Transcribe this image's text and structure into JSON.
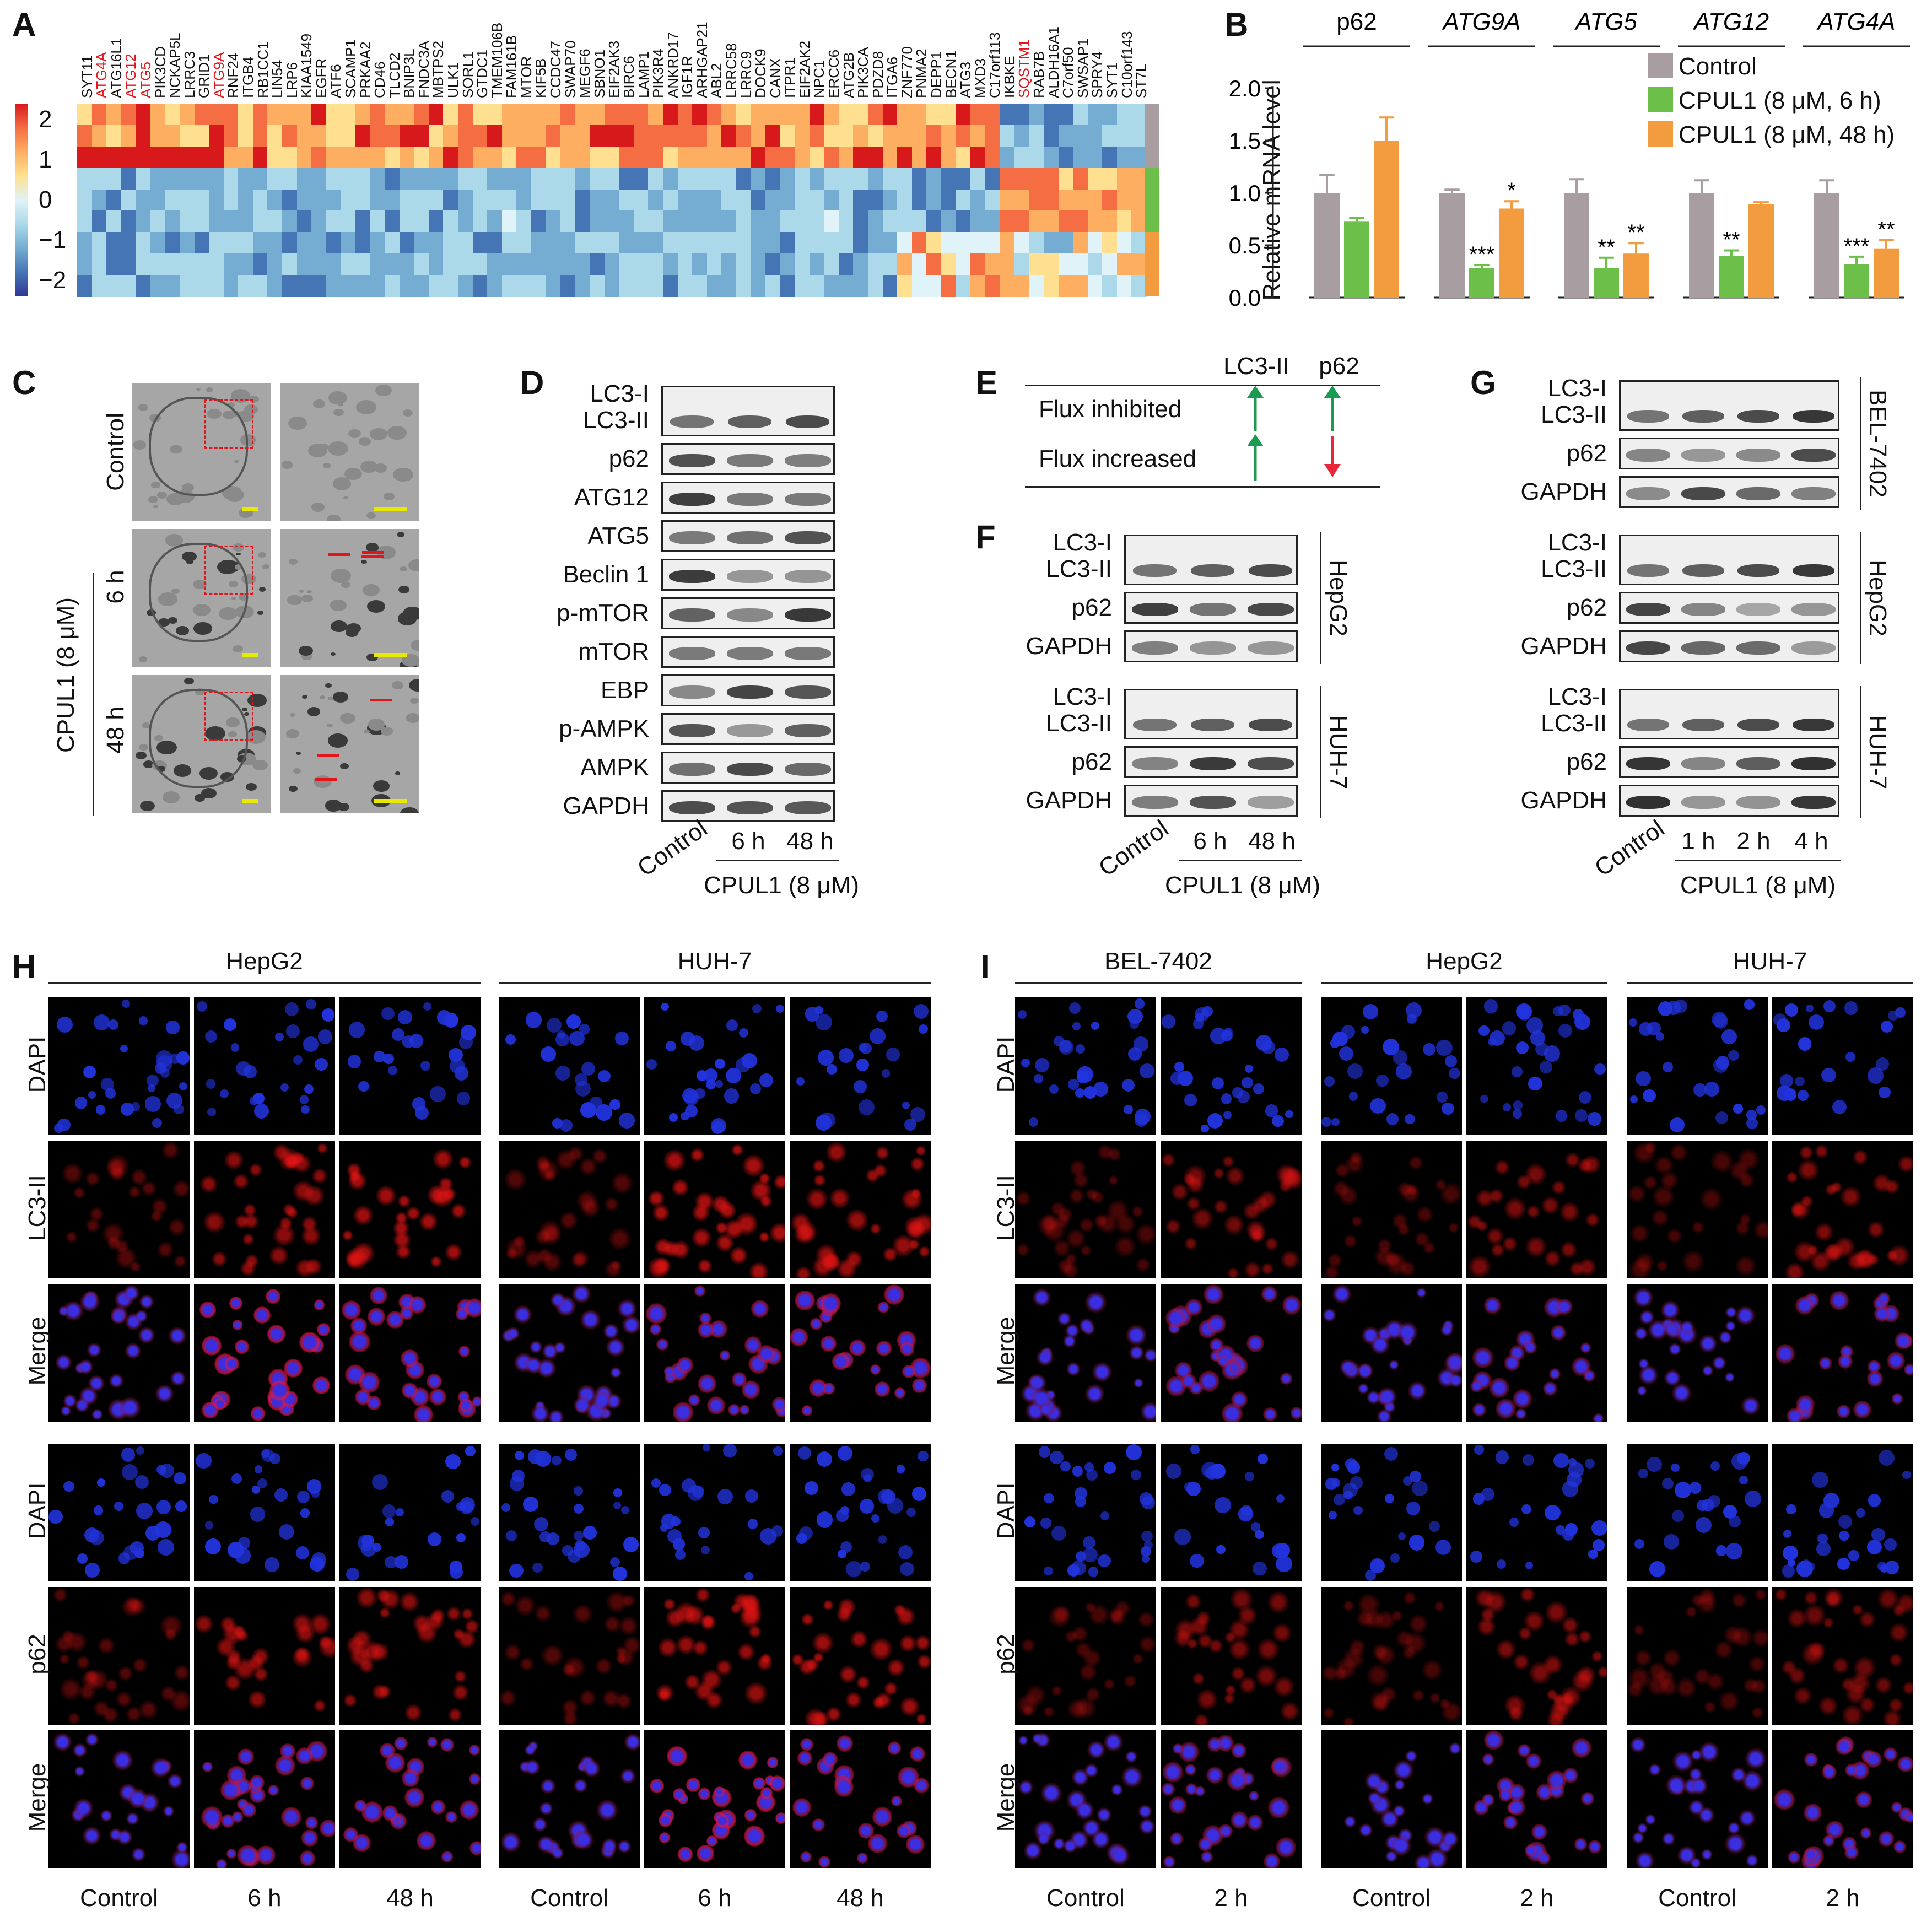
{
  "panels": {
    "A": "A",
    "B": "B",
    "C": "C",
    "D": "D",
    "E": "E",
    "F": "F",
    "G": "G",
    "H": "H",
    "I": "I"
  },
  "heatmap": {
    "genes": [
      "SYT11",
      "ATG4A",
      "ATG16L1",
      "ATG12",
      "ATG5",
      "PIK3CD",
      "NCKAP5L",
      "LRRC3",
      "GRID1",
      "ATG9A",
      "RNF24",
      "ITGB4",
      "RB1CC1",
      "LIN54",
      "LRP6",
      "KIAA1549",
      "EGFR",
      "ATF6",
      "SCAMP1",
      "PRKAA2",
      "CD46",
      "TLCD2",
      "BNIP3L",
      "FNDC3A",
      "MBTPS2",
      "ULK1",
      "SORL1",
      "GTDC1",
      "TMEM106B",
      "FAM161B",
      "MTOR",
      "KIF5B",
      "CCDC47",
      "SWAP70",
      "MEGF6",
      "SBNO1",
      "EIF2AK3",
      "BIRC6",
      "LAMP1",
      "PIK3R4",
      "ANKRD17",
      "IGF1R",
      "ARHGAP21",
      "ABL2",
      "LRRC58",
      "LRRC9",
      "DOCK9",
      "CANX",
      "ITPR1",
      "EIF2AK2",
      "NPC1",
      "ERCC6",
      "ATG2B",
      "PIK3CA",
      "PDZD8",
      "ITGA6",
      "ZNF770",
      "PNMA2",
      "DEPP1",
      "BECN1",
      "ATG3",
      "MXD3",
      "C17orf113",
      "IKBKE",
      "SQSTM1",
      "RAB7B",
      "ALDH16A1",
      "C7orf50",
      "SWSAP1",
      "SPRY4",
      "SYT1",
      "C10orf143",
      "ST7L"
    ],
    "highlighted_genes": [
      "ATG4A",
      "ATG12",
      "ATG5",
      "ATG9A",
      "SQSTM1"
    ],
    "colorbar_ticks": [
      "2",
      "1",
      "0",
      "−1",
      "−2"
    ],
    "colorbar_colors": [
      "#d7191c",
      "#f46d43",
      "#fdae61",
      "#fee090",
      "#e0f3f8",
      "#abd9e9",
      "#74add1",
      "#4575b4",
      "#313695"
    ],
    "group_colors": [
      "#a89ea2",
      "#6cc04a",
      "#f39c3f"
    ]
  },
  "chart_data": {
    "type": "bar",
    "ylabel": "Relative mRNA level",
    "ylim": [
      0,
      2.0
    ],
    "yticks": [
      "0.0",
      "0.5",
      "1.0",
      "1.5",
      "2.0"
    ],
    "categories": [
      "p62",
      "ATG9A",
      "ATG5",
      "ATG12",
      "ATG4A"
    ],
    "series": [
      {
        "name": "Control",
        "color": "#a89ea2",
        "values": [
          1.0,
          1.0,
          1.0,
          1.0,
          1.0
        ],
        "errors": [
          0.17,
          0.03,
          0.13,
          0.12,
          0.12
        ]
      },
      {
        "name": "CPUL1 (8 μM, 6 h)",
        "color": "#6cc04a",
        "values": [
          0.73,
          0.28,
          0.28,
          0.4,
          0.32
        ],
        "errors": [
          0.03,
          0.03,
          0.1,
          0.05,
          0.07
        ]
      },
      {
        "name": "CPUL1 (8 μM, 48 h)",
        "color": "#f39c3f",
        "values": [
          1.5,
          0.85,
          0.42,
          0.89,
          0.47
        ],
        "errors": [
          0.22,
          0.07,
          0.1,
          0.02,
          0.08
        ]
      }
    ],
    "significance": [
      [
        "",
        "",
        ""
      ],
      [
        "",
        "***",
        "*"
      ],
      [
        "",
        "**",
        "**"
      ],
      [
        "",
        "**",
        ""
      ],
      [
        "",
        "***",
        "**"
      ]
    ]
  },
  "panelC": {
    "row_labels": [
      "Control",
      "6 h",
      "48 h"
    ],
    "group_label": "CPUL1 (8 μM)"
  },
  "panelD": {
    "rows": [
      "LC3-I",
      "LC3-II",
      "p62",
      "ATG12",
      "ATG5",
      "Beclin 1",
      "p-mTOR",
      "mTOR",
      "EBP",
      "p-AMPK",
      "AMPK",
      "GAPDH"
    ],
    "lanes": [
      "Control",
      "6 h",
      "48 h"
    ],
    "group": "CPUL1 (8 μM)"
  },
  "panelE": {
    "headers": [
      "LC3-II",
      "p62"
    ],
    "rows": [
      "Flux inhibited",
      "Flux increased"
    ]
  },
  "panelF": {
    "rows": [
      "LC3-I",
      "LC3-II",
      "p62",
      "GAPDH"
    ],
    "cell_lines": [
      "HepG2",
      "HUH-7"
    ],
    "lanes": [
      "Control",
      "6 h",
      "48 h"
    ],
    "group": "CPUL1 (8 μM)"
  },
  "panelG": {
    "rows": [
      "LC3-I",
      "LC3-II",
      "p62",
      "GAPDH"
    ],
    "cell_lines": [
      "BEL-7402",
      "HepG2",
      "HUH-7"
    ],
    "lanes": [
      "Control",
      "1 h",
      "2 h",
      "4 h"
    ],
    "group": "CPUL1 (8 μM)"
  },
  "panelH": {
    "cell_lines": [
      "HepG2",
      "HUH-7"
    ],
    "row_labels": [
      "DAPI",
      "LC3-II",
      "Merge",
      "DAPI",
      "p62",
      "Merge"
    ],
    "col_labels": [
      "Control",
      "6 h",
      "48 h"
    ]
  },
  "panelI": {
    "cell_lines": [
      "BEL-7402",
      "HepG2",
      "HUH-7"
    ],
    "row_labels": [
      "DAPI",
      "LC3-II",
      "Merge",
      "DAPI",
      "p62",
      "Merge"
    ],
    "col_labels": [
      "Control",
      "2 h"
    ]
  }
}
